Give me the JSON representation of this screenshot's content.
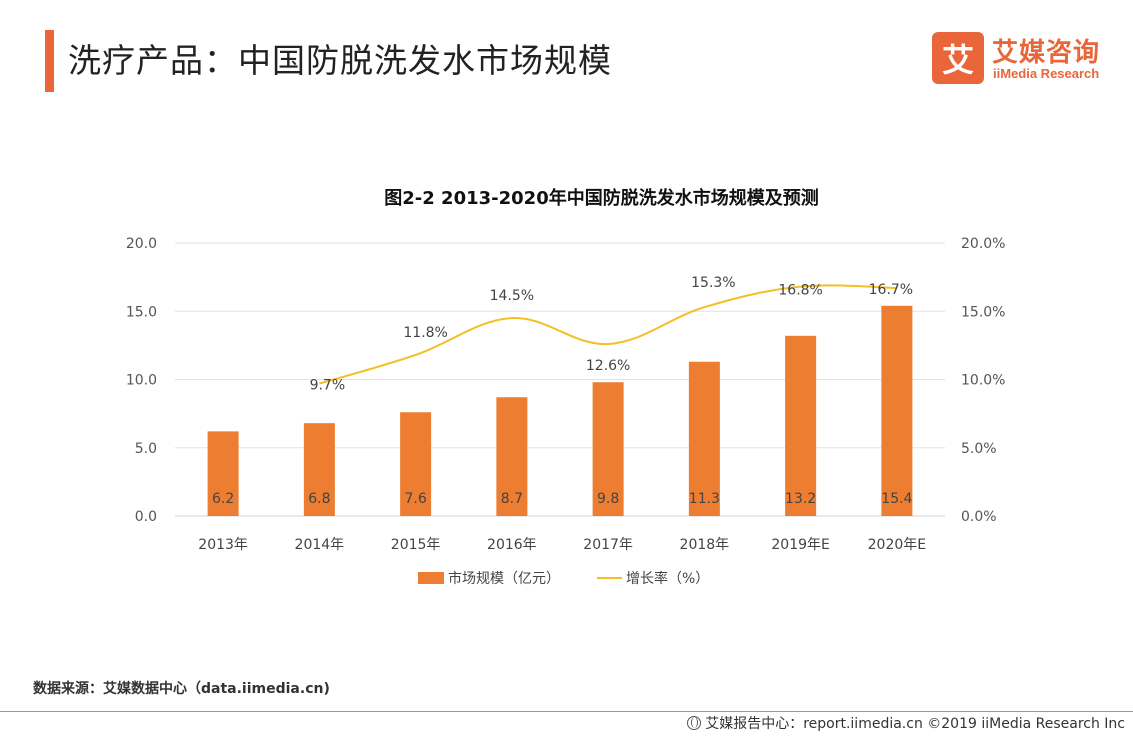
{
  "header": {
    "title": "洗疗产品：中国防脱洗发水市场规模",
    "accent_color": "#e9663a"
  },
  "logo": {
    "mark": "艾",
    "name_cn": "艾媒咨询",
    "name_en": "iiMedia Research"
  },
  "source_note": "数据来源：艾媒数据中心（data.iimedia.cn)",
  "footer": {
    "text": "艾媒报告中心：report.iimedia.cn  ©2019  iiMedia Research  Inc"
  },
  "chart_data": {
    "type": "bar",
    "title": "图2-2 2013-2020年中国防脱洗发水市场规模及预测",
    "categories": [
      "2013年",
      "2014年",
      "2015年",
      "2016年",
      "2017年",
      "2018年",
      "2019年E",
      "2020年E"
    ],
    "series": [
      {
        "name": "市场规模（亿元）",
        "type": "bar",
        "axis": "left",
        "color": "#ed7d31",
        "values": [
          6.2,
          6.8,
          7.6,
          8.7,
          9.8,
          11.3,
          13.2,
          15.4
        ],
        "labels": [
          "6.2",
          "6.8",
          "7.6",
          "8.7",
          "9.8",
          "11.3",
          "13.2",
          "15.4"
        ]
      },
      {
        "name": "增长率（%）",
        "type": "line",
        "axis": "right",
        "color": "#f5be22",
        "values": [
          null,
          9.7,
          11.8,
          14.5,
          12.6,
          15.3,
          16.8,
          16.7
        ],
        "labels": [
          null,
          "9.7%",
          "11.8%",
          "14.5%",
          "12.6%",
          "15.3%",
          "16.8%",
          "16.7%"
        ]
      }
    ],
    "y_left": {
      "ylim": [
        0,
        20
      ],
      "ticks": [
        "0.0",
        "5.0",
        "10.0",
        "15.0",
        "20.0"
      ]
    },
    "y_right": {
      "ylim": [
        0,
        20
      ],
      "ticks": [
        "0.0%",
        "5.0%",
        "10.0%",
        "15.0%",
        "20.0%"
      ]
    },
    "grid": true,
    "legend_position": "bottom"
  }
}
